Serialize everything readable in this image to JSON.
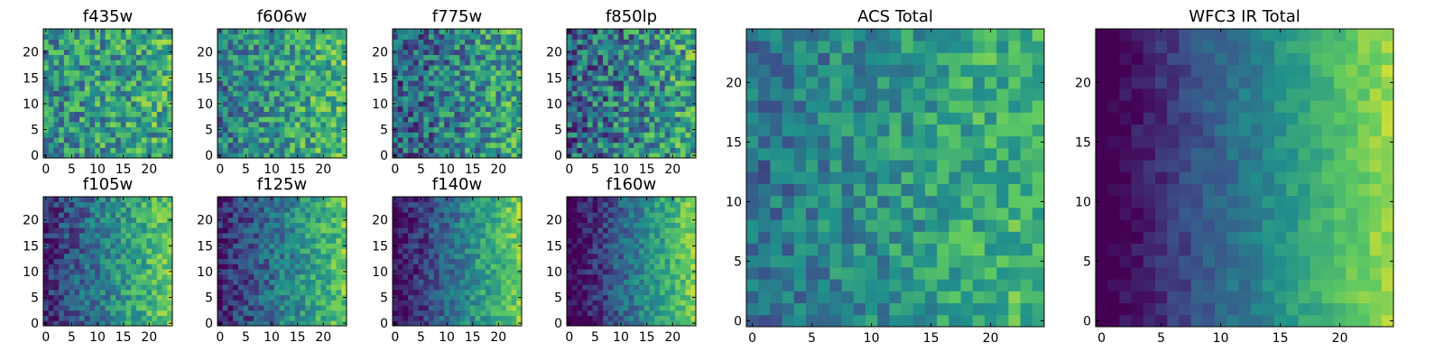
{
  "figure": {
    "background": "#ffffff",
    "colormap": "viridis",
    "colormap_stops": [
      "#440154",
      "#3b528b",
      "#21918c",
      "#5ec962",
      "#fde725"
    ]
  },
  "chart_data": [
    {
      "type": "heatmap",
      "title": "f435w",
      "grid_size": 25,
      "xticks": [
        "0",
        "5",
        "10",
        "15",
        "20"
      ],
      "yticks": [
        "0",
        "5",
        "10",
        "15",
        "20"
      ],
      "xlim": [
        -0.5,
        24.5
      ],
      "ylim": [
        -0.5,
        24.5
      ],
      "normalized_range": [
        0,
        1
      ],
      "noise_amplitude": 0.55,
      "gradient_weight": 0.15,
      "gradient_center": 0.55,
      "seed": 11
    },
    {
      "type": "heatmap",
      "title": "f606w",
      "grid_size": 25,
      "xticks": [
        "0",
        "5",
        "10",
        "15",
        "20"
      ],
      "yticks": [
        "0",
        "5",
        "10",
        "15",
        "20"
      ],
      "xlim": [
        -0.5,
        24.5
      ],
      "ylim": [
        -0.5,
        24.5
      ],
      "normalized_range": [
        0,
        1
      ],
      "noise_amplitude": 0.5,
      "gradient_weight": 0.3,
      "gradient_center": 0.55,
      "seed": 23
    },
    {
      "type": "heatmap",
      "title": "f775w",
      "grid_size": 25,
      "xticks": [
        "0",
        "5",
        "10",
        "15",
        "20"
      ],
      "yticks": [
        "0",
        "5",
        "10",
        "15",
        "20"
      ],
      "xlim": [
        -0.5,
        24.5
      ],
      "ylim": [
        -0.5,
        24.5
      ],
      "normalized_range": [
        0,
        1
      ],
      "noise_amplitude": 0.55,
      "gradient_weight": 0.35,
      "gradient_center": 0.45,
      "seed": 37
    },
    {
      "type": "heatmap",
      "title": "f850lp",
      "grid_size": 25,
      "xticks": [
        "0",
        "5",
        "10",
        "15",
        "20"
      ],
      "yticks": [
        "0",
        "5",
        "10",
        "15",
        "20"
      ],
      "xlim": [
        -0.5,
        24.5
      ],
      "ylim": [
        -0.5,
        24.5
      ],
      "normalized_range": [
        0,
        1
      ],
      "noise_amplitude": 0.6,
      "gradient_weight": 0.3,
      "gradient_center": 0.45,
      "seed": 41
    },
    {
      "type": "heatmap",
      "title": "ACS Total",
      "grid_size": 25,
      "xticks": [
        "0",
        "5",
        "10",
        "15",
        "20"
      ],
      "yticks": [
        "0",
        "5",
        "10",
        "15",
        "20"
      ],
      "xlim": [
        -0.5,
        24.5
      ],
      "ylim": [
        -0.5,
        24.5
      ],
      "normalized_range": [
        0,
        1
      ],
      "noise_amplitude": 0.35,
      "gradient_weight": 0.35,
      "gradient_center": 0.52,
      "seed": 53
    },
    {
      "type": "heatmap",
      "title": "f105w",
      "grid_size": 25,
      "xticks": [
        "0",
        "5",
        "10",
        "15",
        "20"
      ],
      "yticks": [
        "0",
        "5",
        "10",
        "15",
        "20"
      ],
      "xlim": [
        -0.5,
        24.5
      ],
      "ylim": [
        -0.5,
        24.5
      ],
      "normalized_range": [
        0,
        1
      ],
      "noise_amplitude": 0.35,
      "gradient_weight": 0.7,
      "gradient_center": 0.45,
      "seed": 67
    },
    {
      "type": "heatmap",
      "title": "f125w",
      "grid_size": 25,
      "xticks": [
        "0",
        "5",
        "10",
        "15",
        "20"
      ],
      "yticks": [
        "0",
        "5",
        "10",
        "15",
        "20"
      ],
      "xlim": [
        -0.5,
        24.5
      ],
      "ylim": [
        -0.5,
        24.5
      ],
      "normalized_range": [
        0,
        1
      ],
      "noise_amplitude": 0.35,
      "gradient_weight": 0.7,
      "gradient_center": 0.42,
      "seed": 71
    },
    {
      "type": "heatmap",
      "title": "f140w",
      "grid_size": 25,
      "xticks": [
        "0",
        "5",
        "10",
        "15",
        "20"
      ],
      "yticks": [
        "0",
        "5",
        "10",
        "15",
        "20"
      ],
      "xlim": [
        -0.5,
        24.5
      ],
      "ylim": [
        -0.5,
        24.5
      ],
      "normalized_range": [
        0,
        1
      ],
      "noise_amplitude": 0.3,
      "gradient_weight": 0.85,
      "gradient_center": 0.4,
      "seed": 83
    },
    {
      "type": "heatmap",
      "title": "f160w",
      "grid_size": 25,
      "xticks": [
        "0",
        "5",
        "10",
        "15",
        "20"
      ],
      "yticks": [
        "0",
        "5",
        "10",
        "15",
        "20"
      ],
      "xlim": [
        -0.5,
        24.5
      ],
      "ylim": [
        -0.5,
        24.5
      ],
      "normalized_range": [
        0,
        1
      ],
      "noise_amplitude": 0.28,
      "gradient_weight": 0.9,
      "gradient_center": 0.38,
      "seed": 97
    },
    {
      "type": "heatmap",
      "title": "WFC3 IR Total",
      "grid_size": 25,
      "xticks": [
        "0",
        "5",
        "10",
        "15",
        "20"
      ],
      "yticks": [
        "0",
        "5",
        "10",
        "15",
        "20"
      ],
      "xlim": [
        -0.5,
        24.5
      ],
      "ylim": [
        -0.5,
        24.5
      ],
      "normalized_range": [
        0,
        1
      ],
      "noise_amplitude": 0.15,
      "gradient_weight": 1.0,
      "gradient_center": 0.4,
      "seed": 101
    }
  ]
}
